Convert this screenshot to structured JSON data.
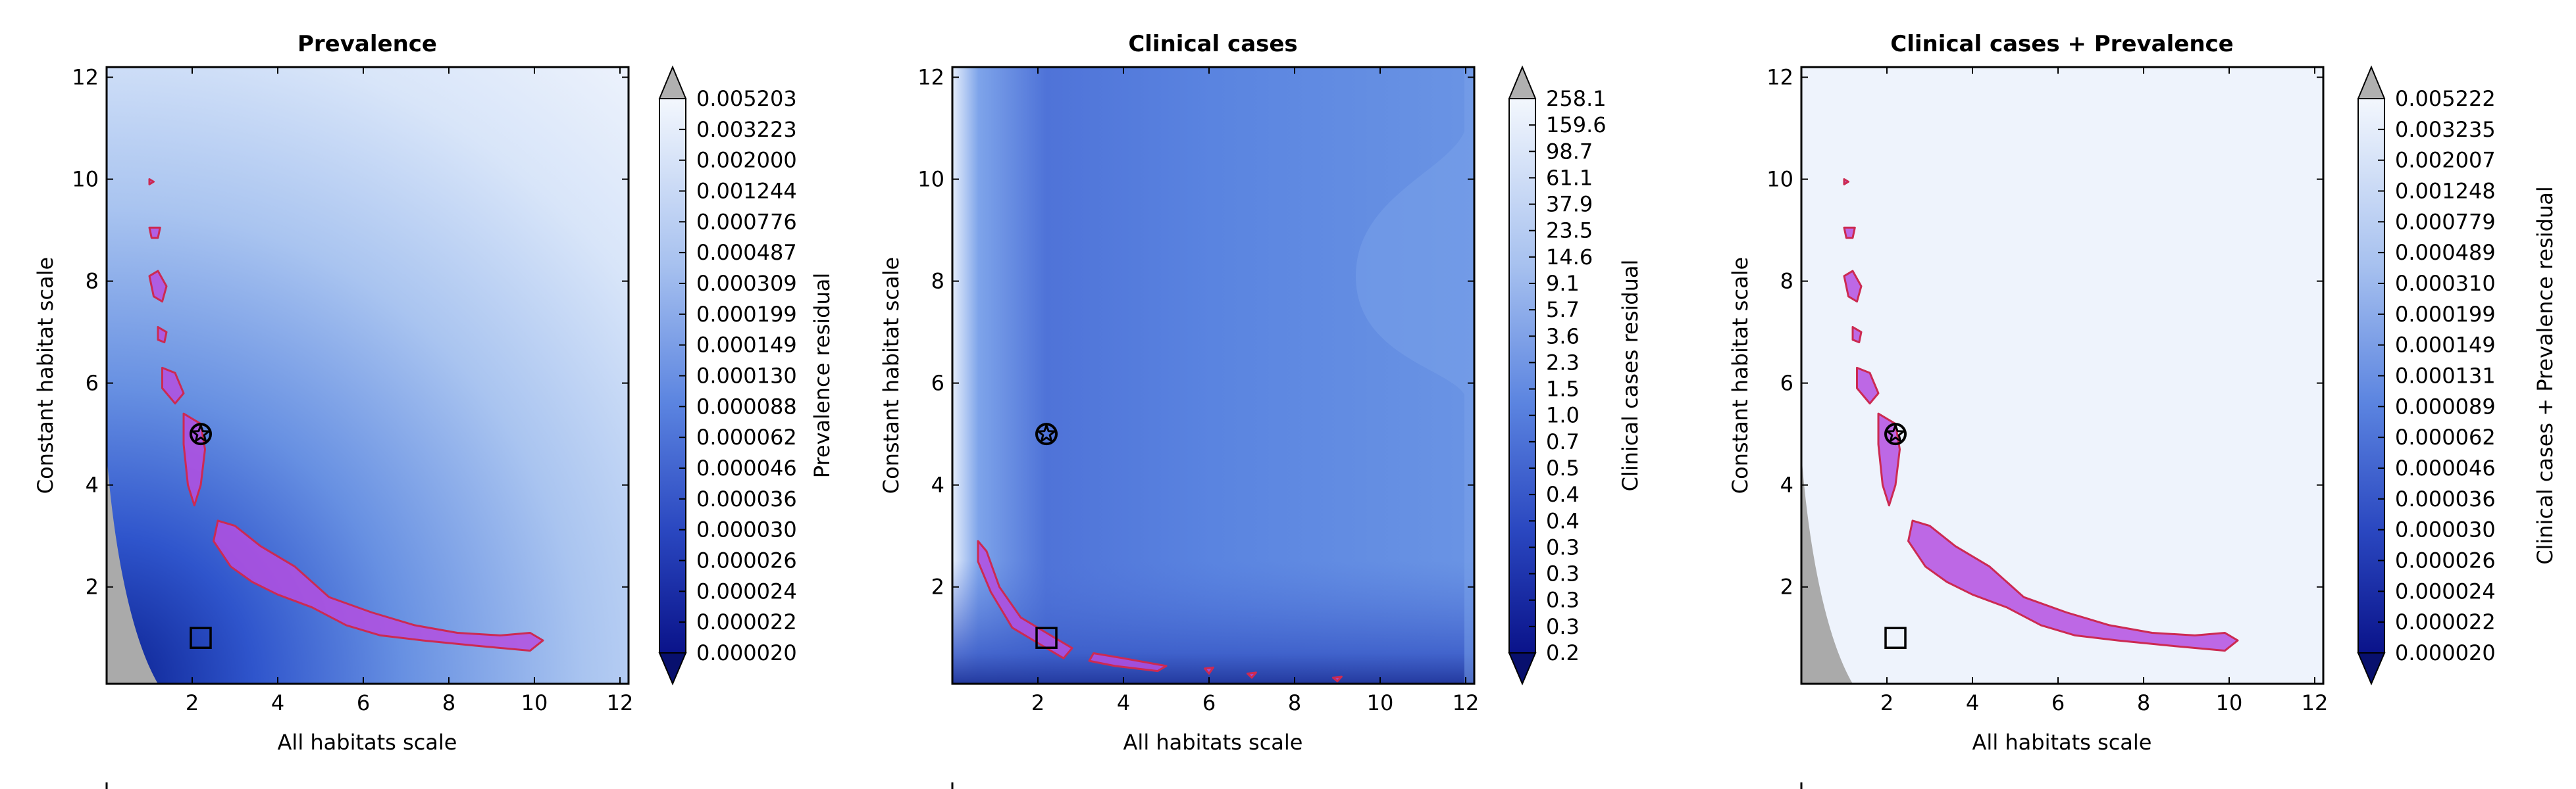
{
  "chart_data": [
    {
      "type": "contour",
      "title": "Prevalence",
      "xlabel": "All habitats scale",
      "ylabel": "Constant habitat scale",
      "xlim": [
        0,
        12.2
      ],
      "ylim": [
        0.1,
        12.2
      ],
      "xticks": [
        "2",
        "4",
        "6",
        "8",
        "10",
        "12"
      ],
      "yticks": [
        "2",
        "4",
        "6",
        "8",
        "10",
        "12"
      ],
      "colorbar_label": "Prevalence residual",
      "colorbar_ticks": [
        "0.005203",
        "0.003223",
        "0.002000",
        "0.001244",
        "0.000776",
        "0.000487",
        "0.000309",
        "0.000199",
        "0.000149",
        "0.000130",
        "0.000088",
        "0.000062",
        "0.000046",
        "0.000036",
        "0.000030",
        "0.000026",
        "0.000024",
        "0.000022",
        "0.000020"
      ],
      "star_marker": [
        2.2,
        5.0
      ],
      "square_marker": [
        2.2,
        1.0
      ],
      "region_polygons": [
        [
          [
            1.0,
            10.0
          ],
          [
            1.1,
            9.95
          ],
          [
            1.0,
            9.9
          ]
        ],
        [
          [
            1.0,
            9.05
          ],
          [
            1.25,
            9.05
          ],
          [
            1.2,
            8.85
          ],
          [
            1.05,
            8.85
          ]
        ],
        [
          [
            1.0,
            8.1
          ],
          [
            1.2,
            8.2
          ],
          [
            1.4,
            7.9
          ],
          [
            1.3,
            7.6
          ],
          [
            1.1,
            7.7
          ]
        ],
        [
          [
            1.2,
            7.1
          ],
          [
            1.4,
            7.0
          ],
          [
            1.35,
            6.8
          ],
          [
            1.2,
            6.85
          ]
        ],
        [
          [
            1.3,
            6.3
          ],
          [
            1.6,
            6.2
          ],
          [
            1.8,
            5.8
          ],
          [
            1.6,
            5.6
          ],
          [
            1.3,
            5.9
          ]
        ],
        [
          [
            1.8,
            5.4
          ],
          [
            2.2,
            5.2
          ],
          [
            2.3,
            4.7
          ],
          [
            2.2,
            4.0
          ],
          [
            2.05,
            3.6
          ],
          [
            1.9,
            4.0
          ],
          [
            1.8,
            4.8
          ]
        ],
        [
          [
            2.6,
            3.3
          ],
          [
            3.0,
            3.2
          ],
          [
            3.6,
            2.8
          ],
          [
            4.4,
            2.4
          ],
          [
            5.2,
            1.8
          ],
          [
            6.2,
            1.5
          ],
          [
            7.2,
            1.25
          ],
          [
            8.2,
            1.1
          ],
          [
            9.2,
            1.05
          ],
          [
            9.9,
            1.1
          ],
          [
            10.2,
            0.95
          ],
          [
            9.9,
            0.75
          ],
          [
            8.6,
            0.85
          ],
          [
            7.4,
            0.95
          ],
          [
            6.4,
            1.05
          ],
          [
            5.6,
            1.25
          ],
          [
            4.8,
            1.6
          ],
          [
            4.0,
            1.85
          ],
          [
            3.4,
            2.1
          ],
          [
            2.9,
            2.4
          ],
          [
            2.5,
            2.9
          ]
        ]
      ]
    },
    {
      "type": "contour",
      "title": "Clinical cases",
      "xlabel": "All habitats scale",
      "ylabel": "Constant habitat scale",
      "xlim": [
        0,
        12.2
      ],
      "ylim": [
        0.1,
        12.2
      ],
      "xticks": [
        "2",
        "4",
        "6",
        "8",
        "10",
        "12"
      ],
      "yticks": [
        "2",
        "4",
        "6",
        "8",
        "10",
        "12"
      ],
      "colorbar_label": "Clinical cases residual",
      "colorbar_ticks": [
        "258.1",
        "159.6",
        "98.7",
        "61.1",
        "37.9",
        "23.5",
        "14.6",
        "9.1",
        "5.7",
        "3.6",
        "2.3",
        "1.5",
        "1.0",
        "0.7",
        "0.5",
        "0.4",
        "0.4",
        "0.3",
        "0.3",
        "0.3",
        "0.3",
        "0.2"
      ],
      "star_marker": [
        2.2,
        5.0
      ],
      "square_marker": [
        2.2,
        1.0
      ],
      "region_polygons": [
        [
          [
            0.6,
            2.9
          ],
          [
            0.8,
            2.7
          ],
          [
            1.1,
            2.0
          ],
          [
            1.6,
            1.4
          ],
          [
            2.2,
            1.1
          ],
          [
            2.8,
            0.8
          ],
          [
            2.6,
            0.6
          ],
          [
            2.0,
            0.9
          ],
          [
            1.4,
            1.2
          ],
          [
            0.9,
            1.9
          ],
          [
            0.6,
            2.5
          ]
        ],
        [
          [
            3.3,
            0.7
          ],
          [
            4.0,
            0.6
          ],
          [
            5.0,
            0.45
          ],
          [
            4.8,
            0.35
          ],
          [
            3.8,
            0.45
          ],
          [
            3.2,
            0.55
          ]
        ],
        [
          [
            5.9,
            0.4
          ],
          [
            6.1,
            0.42
          ],
          [
            6.0,
            0.3
          ]
        ],
        [
          [
            6.9,
            0.3
          ],
          [
            7.1,
            0.32
          ],
          [
            7.0,
            0.22
          ]
        ],
        [
          [
            8.9,
            0.22
          ],
          [
            9.1,
            0.24
          ],
          [
            9.0,
            0.15
          ]
        ]
      ]
    },
    {
      "type": "contour",
      "title": "Clinical cases + Prevalence",
      "xlabel": "All habitats scale",
      "ylabel": "Constant habitat scale",
      "xlim": [
        0,
        12.2
      ],
      "ylim": [
        0.1,
        12.2
      ],
      "xticks": [
        "2",
        "4",
        "6",
        "8",
        "10",
        "12"
      ],
      "yticks": [
        "2",
        "4",
        "6",
        "8",
        "10",
        "12"
      ],
      "colorbar_label": "Clinical cases + Prevalence residual",
      "colorbar_ticks": [
        "0.005222",
        "0.003235",
        "0.002007",
        "0.001248",
        "0.000779",
        "0.000489",
        "0.000310",
        "0.000199",
        "0.000149",
        "0.000131",
        "0.000089",
        "0.000062",
        "0.000046",
        "0.000036",
        "0.000030",
        "0.000026",
        "0.000024",
        "0.000022",
        "0.000020"
      ],
      "star_marker": [
        2.2,
        5.0
      ],
      "square_marker": [
        2.2,
        1.0
      ],
      "region_polygons": [
        [
          [
            1.0,
            10.0
          ],
          [
            1.1,
            9.95
          ],
          [
            1.0,
            9.9
          ]
        ],
        [
          [
            1.0,
            9.05
          ],
          [
            1.25,
            9.05
          ],
          [
            1.2,
            8.85
          ],
          [
            1.05,
            8.85
          ]
        ],
        [
          [
            1.0,
            8.1
          ],
          [
            1.2,
            8.2
          ],
          [
            1.4,
            7.9
          ],
          [
            1.3,
            7.6
          ],
          [
            1.1,
            7.7
          ]
        ],
        [
          [
            1.2,
            7.1
          ],
          [
            1.4,
            7.0
          ],
          [
            1.35,
            6.8
          ],
          [
            1.2,
            6.85
          ]
        ],
        [
          [
            1.3,
            6.3
          ],
          [
            1.6,
            6.2
          ],
          [
            1.8,
            5.8
          ],
          [
            1.6,
            5.6
          ],
          [
            1.3,
            5.9
          ]
        ],
        [
          [
            1.8,
            5.4
          ],
          [
            2.2,
            5.2
          ],
          [
            2.3,
            4.7
          ],
          [
            2.2,
            4.0
          ],
          [
            2.05,
            3.6
          ],
          [
            1.9,
            4.0
          ],
          [
            1.8,
            4.8
          ]
        ],
        [
          [
            2.6,
            3.3
          ],
          [
            3.0,
            3.2
          ],
          [
            3.6,
            2.8
          ],
          [
            4.4,
            2.4
          ],
          [
            5.2,
            1.8
          ],
          [
            6.2,
            1.5
          ],
          [
            7.2,
            1.25
          ],
          [
            8.2,
            1.1
          ],
          [
            9.2,
            1.05
          ],
          [
            9.9,
            1.1
          ],
          [
            10.2,
            0.95
          ],
          [
            9.9,
            0.75
          ],
          [
            8.6,
            0.85
          ],
          [
            7.4,
            0.95
          ],
          [
            6.4,
            1.05
          ],
          [
            5.6,
            1.25
          ],
          [
            4.8,
            1.6
          ],
          [
            4.0,
            1.85
          ],
          [
            3.4,
            2.1
          ],
          [
            2.9,
            2.4
          ],
          [
            2.5,
            2.9
          ]
        ]
      ]
    }
  ],
  "colors": {
    "region_fill": "#b44fe0",
    "region_stroke": "#cc2a52",
    "excluded_area": "#aaaaaa",
    "colorbar_extend_top": "#b0b0b0",
    "colorbar_extend_bottom": "#08106e"
  }
}
